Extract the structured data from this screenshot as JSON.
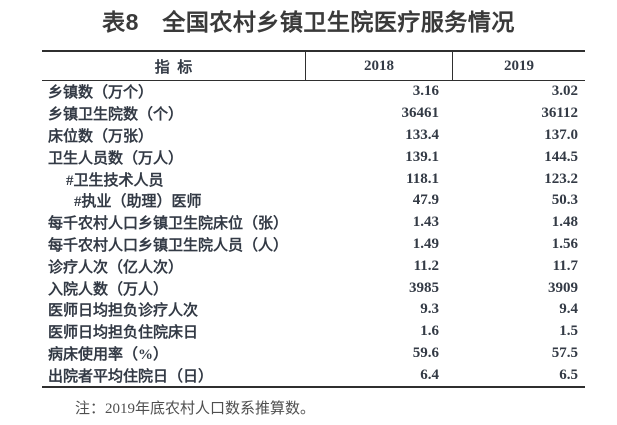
{
  "chart_data": {
    "type": "table",
    "title": "表8　全国农村乡镇卫生院医疗服务情况",
    "columns": [
      "指  标",
      "2018",
      "2019"
    ],
    "rows": [
      {
        "label": "乡镇数（万个）",
        "indent": 0,
        "values": [
          "3.16",
          "3.02"
        ]
      },
      {
        "label": "乡镇卫生院数（个）",
        "indent": 0,
        "values": [
          "36461",
          "36112"
        ]
      },
      {
        "label": "床位数（万张）",
        "indent": 0,
        "values": [
          "133.4",
          "137.0"
        ]
      },
      {
        "label": "卫生人员数（万人）",
        "indent": 0,
        "values": [
          "139.1",
          "144.5"
        ]
      },
      {
        "label": "#卫生技术人员",
        "indent": 1,
        "values": [
          "118.1",
          "123.2"
        ]
      },
      {
        "label": "#执业（助理）医师",
        "indent": 2,
        "values": [
          "47.9",
          "50.3"
        ]
      },
      {
        "label": "每千农村人口乡镇卫生院床位（张）",
        "indent": 0,
        "values": [
          "1.43",
          "1.48"
        ]
      },
      {
        "label": "每千农村人口乡镇卫生院人员（人）",
        "indent": 0,
        "values": [
          "1.49",
          "1.56"
        ]
      },
      {
        "label": "诊疗人次（亿人次）",
        "indent": 0,
        "values": [
          "11.2",
          "11.7"
        ]
      },
      {
        "label": "入院人数（万人）",
        "indent": 0,
        "values": [
          "3985",
          "3909"
        ]
      },
      {
        "label": "医师日均担负诊疗人次",
        "indent": 0,
        "values": [
          "9.3",
          "9.4"
        ]
      },
      {
        "label": "医师日均担负住院床日",
        "indent": 0,
        "values": [
          "1.6",
          "1.5"
        ]
      },
      {
        "label": "病床使用率（%）",
        "indent": 0,
        "values": [
          "59.6",
          "57.5"
        ]
      },
      {
        "label": "出院者平均住院日（日）",
        "indent": 0,
        "values": [
          "6.4",
          "6.5"
        ]
      }
    ],
    "note": "注：2019年底农村人口数系推算数。"
  },
  "colors": {
    "title_ink": "#3a3a3a",
    "body_ink": "#333a45",
    "rule_ink": "#2f2f2f",
    "note_ink": "#4f4f4f",
    "background": "#ffffff"
  }
}
